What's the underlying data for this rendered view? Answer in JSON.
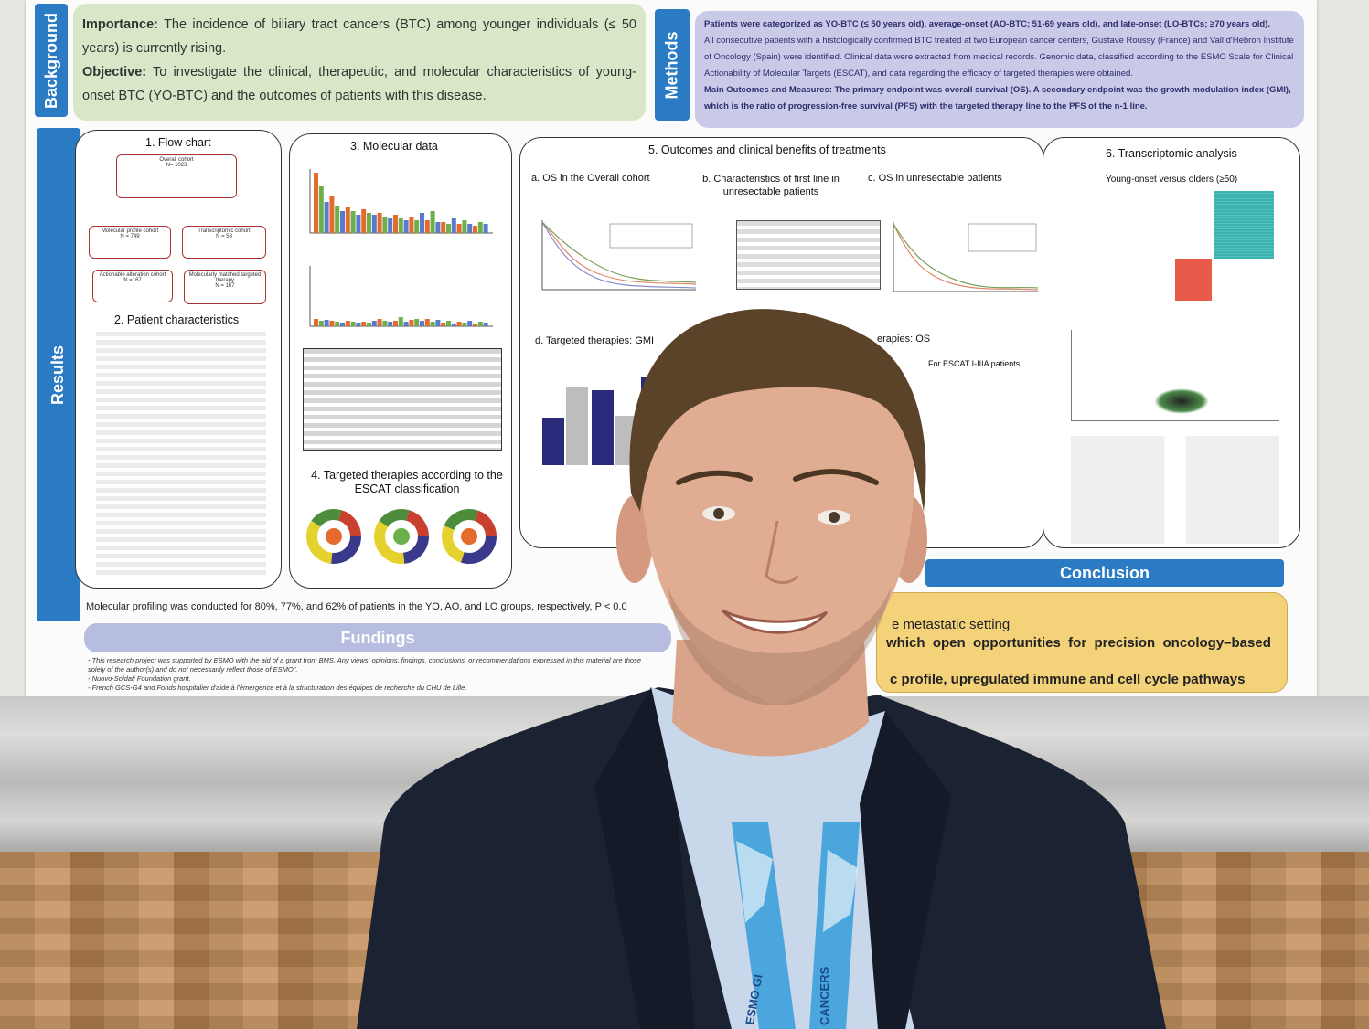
{
  "poster": {
    "sections": {
      "background": "Background",
      "methods": "Methods",
      "results": "Results",
      "conclusion": "Conclusion",
      "fundings": "Fundings"
    },
    "background_box": {
      "importance_label": "Importance:",
      "importance_text": "The incidence of biliary tract cancers (BTC) among younger individuals (≤ 50 years) is currently rising.",
      "objective_label": "Objective:",
      "objective_text": "To investigate the clinical, therapeutic, and molecular characteristics of young-onset BTC (YO-BTC) and the outcomes of patients with this disease."
    },
    "methods_box": {
      "line1": "Patients were categorized as YO-BTC (≤ 50 years old), average-onset (AO-BTC; 51-69 years old), and late-onset (LO-BTCs; ≥70 years old).",
      "line2": "All consecutive patients with a histologically confirmed BTC treated at two European cancer centers, Gustave Roussy (France) and Vall d'Hebron Institute of Oncology (Spain) were identified. Clinical data were extracted from medical records. Genomic data, classified according to the ESMO Scale for Clinical Actionability of Molecular Targets (ESCAT), and data regarding the efficacy of targeted therapies were obtained.",
      "line3": "Main Outcomes and Measures: The primary endpoint was overall survival (OS). A secondary endpoint was the growth modulation index (GMI), which is the ratio of progression-free survival (PFS) with the targeted therapy line to the PFS of the n-1 line."
    },
    "panels": {
      "flow_chart": "1. Flow chart",
      "patient_characteristics": "2. Patient characteristics",
      "molecular_data": "3. Molecular data",
      "targeted_escat": "4. Targeted therapies according to the ESCAT classification",
      "outcomes": "5. Outcomes and clinical benefits of treatments",
      "os_overall": "a. OS in the Overall cohort",
      "first_line": "b. Characteristics of first line in unresectable patients",
      "os_unresectable": "c. OS in unresectable patients",
      "gmi": "d. Targeted therapies: GMI",
      "os_partial": "erapies:  OS",
      "escat_patients": "For ESCAT I-IIIA patients",
      "transcriptomic": "6. Transcriptomic analysis",
      "young_vs_older": "Young-onset versus olders (≥50)"
    },
    "flow": {
      "overall": "Overall cohort",
      "overall_n": "N= 1023",
      "molecular": "Molecular profile cohort",
      "molecular_n": "N = 749",
      "transcriptomic": "Transcriptomic cohort",
      "transcriptomic_n": "N = 58",
      "actionable": "Actionable alteration cohort",
      "actionable_n": "N =167",
      "matched": "Molecularly matched targeted therapy",
      "matched_n": "N = 167"
    },
    "profiling_note": "Molecular profiling was conducted for 80%, 77%, and 62% of patients in the YO, AO, and LO groups, respectively, P < 0.0",
    "conclusion_lines": [
      "e metastatic setting",
      "which  open  opportunities  for  precision  oncology–based",
      "c profile, upregulated immune and cell cycle pathways"
    ],
    "fundings_lines": [
      "- This research project was supported by ESMO with the aid of a grant from BMS. Any views, opinions, findings, conclusions, or recommendations expressed in this material are those",
      "solely of the author(s) and do not necessarily reflect those of ESMO\".",
      "- Nuovo-Soldati Foundation grant.",
      "- French GCS-G4 and Fonds hospitalier d'aide à l'émergence et à la structuration des équipes de recherche du CHU de Lille."
    ]
  },
  "lanyard": {
    "left_text": "ESMO GI",
    "right_text": "CANCERS"
  },
  "colors": {
    "section_blue": "#2b7bc4",
    "background_green": "#d7e7c8",
    "methods_lavender": "#c9c9e8",
    "conclusion_yellow": "#f3d27a",
    "jacket": "#1b2232"
  }
}
